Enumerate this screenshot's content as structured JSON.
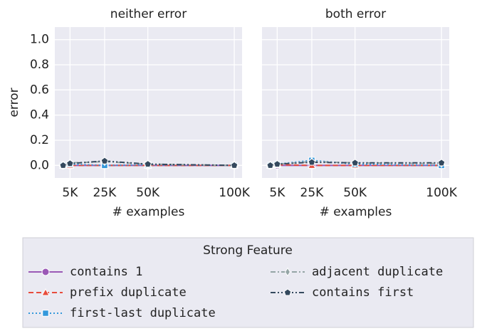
{
  "chart_data": [
    {
      "type": "line",
      "title": "neither error",
      "xlabel": "# examples",
      "ylabel": "error",
      "x": [
        1000,
        5000,
        25000,
        50000,
        100000
      ],
      "xlim": [
        -3800,
        104500
      ],
      "ylim": [
        -0.1,
        1.1
      ],
      "xticks": [
        {
          "value": 5000,
          "label": "5K"
        },
        {
          "value": 25000,
          "label": "25K"
        },
        {
          "value": 50000,
          "label": "50K"
        },
        {
          "value": 100000,
          "label": "100K"
        }
      ],
      "yticks": [
        {
          "value": 0,
          "label": "0.0"
        },
        0.2,
        0.4,
        0.6,
        0.8,
        {
          "value": 1,
          "label": "1.0"
        }
      ],
      "grid": true,
      "series": [
        {
          "name": "contains 1",
          "color": "#9b59b6",
          "marker": "circle",
          "linestyle": "solid",
          "values": [
            0,
            0,
            0,
            0,
            0
          ]
        },
        {
          "name": "prefix duplicate",
          "color": "#e74c3c",
          "marker": "triangle",
          "linestyle": "dashed",
          "values": [
            0,
            0,
            0,
            0,
            0
          ]
        },
        {
          "name": "first-last duplicate",
          "color": "#3498db",
          "marker": "square",
          "linestyle": "dotted",
          "values": [
            0,
            0.01,
            0,
            0.005,
            0
          ]
        },
        {
          "name": "adjacent duplicate",
          "color": "#95a5a6",
          "marker": "diamond",
          "linestyle": "dashdot",
          "values": [
            0,
            0.02,
            0.03,
            0.01,
            0
          ]
        },
        {
          "name": "contains first",
          "color": "#34495e",
          "marker": "pentagon",
          "linestyle": "dashdotdot",
          "values": [
            0,
            0.015,
            0.035,
            0.01,
            0
          ]
        }
      ]
    },
    {
      "type": "line",
      "title": "both error",
      "xlabel": "# examples",
      "x": [
        1000,
        5000,
        25000,
        50000,
        100000
      ],
      "xlim": [
        -3800,
        104500
      ],
      "ylim": [
        -0.1,
        1.1
      ],
      "xticks": [
        {
          "value": 5000,
          "label": "5K"
        },
        {
          "value": 25000,
          "label": "25K"
        },
        {
          "value": 50000,
          "label": "50K"
        },
        {
          "value": 100000,
          "label": "100K"
        }
      ],
      "yticks": [
        0,
        0.2,
        0.4,
        0.6,
        0.8,
        1
      ],
      "grid": true,
      "series": [
        {
          "name": "contains 1",
          "color": "#9b59b6",
          "marker": "circle",
          "linestyle": "solid",
          "values": [
            0,
            0,
            0,
            0,
            0
          ]
        },
        {
          "name": "prefix duplicate",
          "color": "#e74c3c",
          "marker": "triangle",
          "linestyle": "dashed",
          "values": [
            0,
            0.005,
            0,
            0,
            0
          ]
        },
        {
          "name": "first-last duplicate",
          "color": "#3498db",
          "marker": "square",
          "linestyle": "dotted",
          "values": [
            0,
            0.01,
            0.04,
            0.01,
            0
          ]
        },
        {
          "name": "adjacent duplicate",
          "color": "#95a5a6",
          "marker": "diamond",
          "linestyle": "dashdot",
          "values": [
            0,
            0.01,
            0.03,
            0.02,
            0.015
          ]
        },
        {
          "name": "contains first",
          "color": "#34495e",
          "marker": "pentagon",
          "linestyle": "dashdotdot",
          "values": [
            0,
            0.01,
            0.025,
            0.02,
            0.02
          ]
        }
      ]
    }
  ],
  "legend": {
    "title": "Strong Feature"
  }
}
